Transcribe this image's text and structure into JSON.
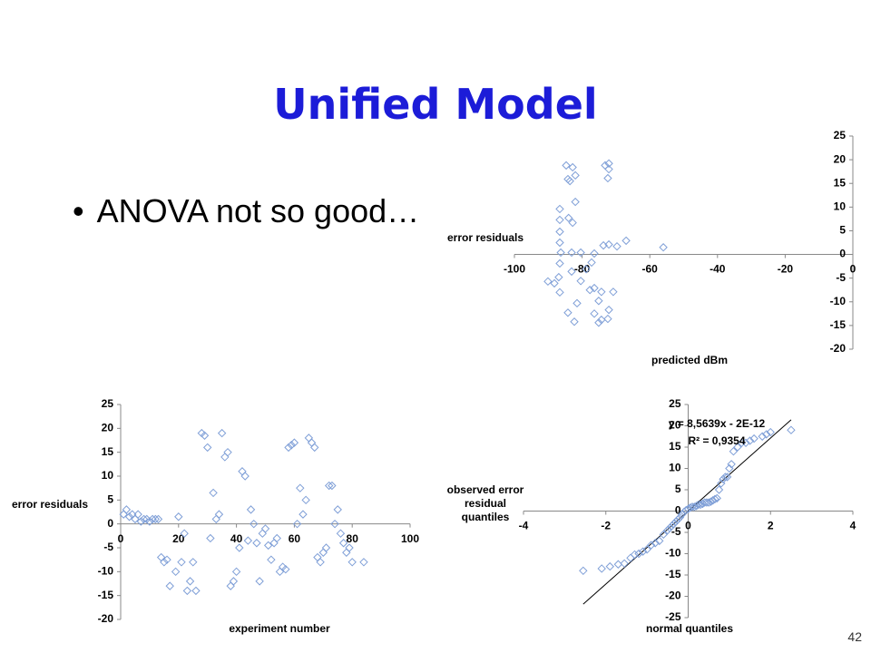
{
  "slide": {
    "title": "Unified Model",
    "bullet": "ANOVA not so good…",
    "page_number": "42"
  },
  "chart_data": [
    {
      "type": "scatter",
      "x_label": "predicted dBm",
      "y_label": "error residuals",
      "xlim": [
        -100,
        0
      ],
      "xticks": [
        -100,
        -80,
        -60,
        -40,
        -20,
        0
      ],
      "ylim": [
        -20,
        25
      ],
      "yticks": [
        -20,
        -15,
        -10,
        -5,
        0,
        5,
        10,
        15,
        20,
        25
      ],
      "series": [
        {
          "color": "#7f9fd7",
          "x": [
            -84.7,
            -82.8,
            -84.2,
            -83.6,
            -82,
            -73.2,
            -72.1,
            -72.4,
            -72.1,
            -82,
            -86.6,
            -84,
            -82.8,
            -86.6,
            -86.6,
            -86.6,
            -86.3,
            -83.1,
            -80.4,
            -76.4,
            -73.7,
            -72.1,
            -69.7,
            -67,
            -56,
            -86.6,
            -83.1,
            -86.9,
            -90.1,
            -88.2,
            -86.6,
            -80.4,
            -77.7,
            -76.4,
            -74.3,
            -75.1,
            -70.8,
            -81.5,
            -84.2,
            -82.3,
            -76.4,
            -74.3,
            -72.4,
            -75.1,
            -72.1,
            -77.2,
            -78.8
          ],
          "values": [
            18.8,
            18.4,
            15.9,
            15.5,
            16.7,
            18.8,
            18,
            16.1,
            19.2,
            11.1,
            9.6,
            7.7,
            6.7,
            7.3,
            4.8,
            2.5,
            0.4,
            0.4,
            0.4,
            0.2,
            1.9,
            2.1,
            1.7,
            2.9,
            1.5,
            -1.9,
            -3.6,
            -4.8,
            -5.7,
            -6.1,
            -8,
            -5.6,
            -7.5,
            -7.1,
            -7.9,
            -9.8,
            -7.9,
            -10.3,
            -12.3,
            -14.2,
            -12.5,
            -13.8,
            -13.6,
            -14.4,
            -11.7,
            -1.7,
            -3.1
          ]
        }
      ]
    },
    {
      "type": "scatter",
      "x_label": "experiment number",
      "y_label": "error residuals",
      "xlim": [
        0,
        100
      ],
      "xticks": [
        0,
        20,
        40,
        60,
        80,
        100
      ],
      "ylim": [
        -20,
        25
      ],
      "yticks": [
        -20,
        -15,
        -10,
        -5,
        0,
        5,
        10,
        15,
        20,
        25
      ],
      "series": [
        {
          "color": "#7f9fd7",
          "x": [
            1,
            2,
            3,
            4,
            5,
            6,
            7,
            8,
            9,
            10,
            11,
            12,
            13,
            14,
            15,
            16,
            17,
            19,
            20,
            21,
            22,
            23,
            24,
            25,
            26,
            28,
            29,
            30,
            31,
            32,
            33,
            34,
            35,
            36,
            37,
            38,
            39,
            40,
            41,
            42,
            43,
            44,
            45,
            46,
            47,
            48,
            49,
            50,
            51,
            52,
            53,
            54,
            55,
            56,
            57,
            58,
            59,
            60,
            61,
            62,
            63,
            64,
            65,
            66,
            67,
            68,
            69,
            70,
            71,
            72,
            73,
            74,
            75,
            76,
            77,
            78,
            79,
            80,
            84
          ],
          "values": [
            2,
            3,
            1.5,
            2,
            1,
            2,
            0.5,
            1,
            1,
            0.5,
            1,
            1,
            1,
            -7,
            -8,
            -7.5,
            -13,
            -10,
            1.5,
            -8,
            -2,
            -14,
            -12,
            -8,
            -14,
            19,
            18.5,
            16,
            -3,
            6.5,
            1,
            2,
            19,
            14,
            15,
            -13,
            -12,
            -10,
            -5,
            11,
            10,
            -3.5,
            3,
            0,
            -4,
            -12,
            -2,
            -1,
            -4.5,
            -7.5,
            -4,
            -3,
            -10,
            -9,
            -9.5,
            16,
            16.5,
            17,
            0,
            7.5,
            2,
            5,
            18,
            17,
            16,
            -7,
            -8,
            -6,
            -5,
            8,
            8,
            0,
            3,
            -2,
            -4,
            -6,
            -5,
            -8,
            -8
          ]
        }
      ]
    },
    {
      "type": "scatter",
      "x_label": "normal quantiles",
      "y_label": "observed error residual quantiles",
      "xlim": [
        -4,
        4
      ],
      "xticks": [
        -4,
        -2,
        0,
        2,
        4
      ],
      "ylim": [
        -25,
        25
      ],
      "yticks": [
        -25,
        -20,
        -15,
        -10,
        -5,
        0,
        5,
        10,
        15,
        20,
        25
      ],
      "annotations": [
        "y = 8,5639x - 2E-12",
        "R² = 0,9354"
      ],
      "trendline": {
        "slope": 8.5639,
        "intercept": -2e-12,
        "color": "#000000"
      },
      "series": [
        {
          "color": "#7f9fd7",
          "x": [
            -2.55,
            -2.1,
            -1.9,
            -1.7,
            -1.55,
            -1.4,
            -1.3,
            -1.2,
            -1.1,
            -1.0,
            -0.9,
            -0.8,
            -0.7,
            -0.6,
            -0.5,
            -0.45,
            -0.4,
            -0.35,
            -0.3,
            -0.25,
            -0.2,
            -0.15,
            -0.1,
            -0.05,
            0,
            0.05,
            0.1,
            0.15,
            0.2,
            0.25,
            0.3,
            0.35,
            0.4,
            0.45,
            0.5,
            0.55,
            0.6,
            0.65,
            0.7,
            0.75,
            0.8,
            0.85,
            0.9,
            0.95,
            1.0,
            1.05,
            1.1,
            1.2,
            1.3,
            1.4,
            1.5,
            1.6,
            1.8,
            1.9,
            2.0,
            2.5
          ],
          "values": [
            -14,
            -13.5,
            -13,
            -12.5,
            -12.3,
            -11,
            -10.2,
            -10,
            -9.5,
            -9,
            -8,
            -7.5,
            -7,
            -5.5,
            -4.5,
            -4,
            -3.5,
            -3,
            -2.5,
            -2,
            -1.5,
            -0.8,
            -0.2,
            0.2,
            0.5,
            0.8,
            1,
            1,
            1.2,
            1.5,
            1.5,
            1.7,
            2,
            2,
            2,
            2.2,
            2.5,
            2.8,
            3,
            5,
            6.5,
            7.5,
            8,
            8,
            10,
            11,
            14,
            15,
            16,
            16,
            16.5,
            17,
            17.5,
            18,
            18.5,
            19
          ]
        }
      ]
    }
  ]
}
